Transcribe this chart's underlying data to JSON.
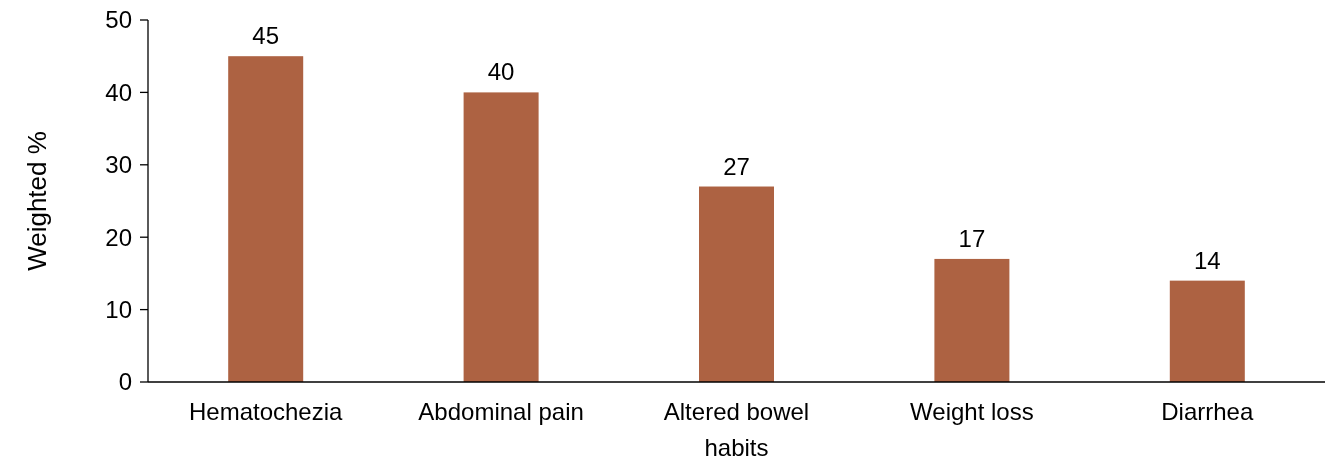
{
  "chart_data": {
    "type": "bar",
    "ylabel": "Weighted %",
    "categories": [
      "Hematochezia",
      "Abdominal pain",
      "Altered bowel habits",
      "Weight loss",
      "Diarrhea"
    ],
    "values": [
      45,
      40,
      27,
      17,
      14
    ],
    "color": "#ad6242",
    "ylim": [
      0,
      50
    ],
    "yticks": [
      0,
      10,
      20,
      30,
      40,
      50
    ],
    "data_labels": true,
    "grid": false
  }
}
